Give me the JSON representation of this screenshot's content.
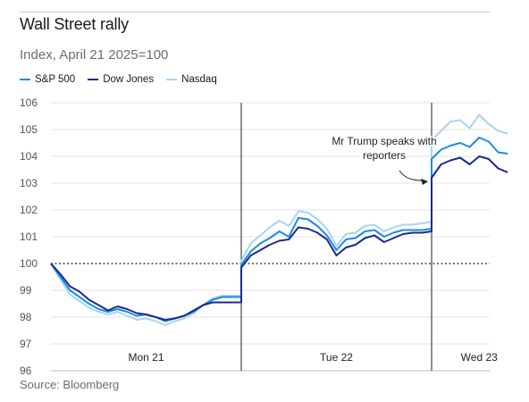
{
  "title": "Wall Street rally",
  "subtitle": "Index, April 21 2025=100",
  "source": "Source: Bloomberg",
  "legend": [
    {
      "name": "S&P 500",
      "color": "#1b8ce3"
    },
    {
      "name": "Dow Jones",
      "color": "#1c2a8c"
    },
    {
      "name": "Nasdaq",
      "color": "#a9d4f2"
    }
  ],
  "chart_data": {
    "type": "line",
    "ylim": [
      96,
      106
    ],
    "yticks": [
      96,
      97,
      98,
      99,
      100,
      101,
      102,
      103,
      104,
      105,
      106
    ],
    "baseline": 100,
    "xlim": [
      0,
      2.5
    ],
    "days": [
      {
        "label": "Mon 21",
        "start": 0,
        "end": 1
      },
      {
        "label": "Tue 22",
        "start": 1,
        "end": 2
      },
      {
        "label": "Wed 23",
        "start": 2,
        "end": 2.5
      }
    ],
    "annotation": {
      "lines": [
        "Mr Trump speaks with",
        "reporters"
      ],
      "x": 2.02,
      "y": 103.2
    },
    "series": [
      {
        "name": "S&P 500",
        "color": "#1b8ce3",
        "x": [
          0,
          0.05,
          0.1,
          0.15,
          0.2,
          0.25,
          0.3,
          0.35,
          0.4,
          0.45,
          0.5,
          0.55,
          0.6,
          0.65,
          0.7,
          0.75,
          0.8,
          0.85,
          0.9,
          0.95,
          1.0,
          1.0,
          1.05,
          1.1,
          1.15,
          1.2,
          1.25,
          1.3,
          1.35,
          1.4,
          1.45,
          1.5,
          1.55,
          1.6,
          1.65,
          1.7,
          1.75,
          1.8,
          1.85,
          1.9,
          1.95,
          2.0,
          2.0,
          2.05,
          2.1,
          2.15,
          2.2,
          2.25,
          2.3,
          2.35,
          2.4
        ],
        "values": [
          100.0,
          99.5,
          99.0,
          98.75,
          98.5,
          98.3,
          98.2,
          98.3,
          98.2,
          98.05,
          98.1,
          98.0,
          97.85,
          97.95,
          98.05,
          98.2,
          98.45,
          98.65,
          98.75,
          98.75,
          98.75,
          99.95,
          100.45,
          100.75,
          100.95,
          101.2,
          101.0,
          101.7,
          101.65,
          101.4,
          101.05,
          100.5,
          100.9,
          100.95,
          101.2,
          101.25,
          101.0,
          101.15,
          101.25,
          101.25,
          101.25,
          101.3,
          103.9,
          104.25,
          104.4,
          104.5,
          104.35,
          104.7,
          104.55,
          104.15,
          104.1
        ]
      },
      {
        "name": "Dow Jones",
        "color": "#1c2a8c",
        "x": [
          0,
          0.05,
          0.1,
          0.15,
          0.2,
          0.25,
          0.3,
          0.35,
          0.4,
          0.45,
          0.5,
          0.55,
          0.6,
          0.65,
          0.7,
          0.75,
          0.8,
          0.85,
          0.9,
          0.95,
          1.0,
          1.0,
          1.05,
          1.1,
          1.15,
          1.2,
          1.25,
          1.3,
          1.35,
          1.4,
          1.45,
          1.5,
          1.55,
          1.6,
          1.65,
          1.7,
          1.75,
          1.8,
          1.85,
          1.9,
          1.95,
          2.0,
          2.0,
          2.05,
          2.1,
          2.15,
          2.2,
          2.25,
          2.3,
          2.35,
          2.4
        ],
        "values": [
          100.0,
          99.6,
          99.15,
          98.95,
          98.65,
          98.45,
          98.25,
          98.4,
          98.3,
          98.15,
          98.1,
          98.0,
          97.9,
          97.95,
          98.05,
          98.25,
          98.45,
          98.55,
          98.55,
          98.55,
          98.55,
          99.85,
          100.3,
          100.5,
          100.7,
          100.85,
          100.9,
          101.35,
          101.3,
          101.15,
          100.9,
          100.3,
          100.6,
          100.7,
          100.95,
          101.05,
          100.8,
          100.95,
          101.1,
          101.15,
          101.15,
          101.2,
          103.2,
          103.7,
          103.85,
          103.95,
          103.7,
          104.0,
          103.9,
          103.55,
          103.4
        ]
      },
      {
        "name": "Nasdaq",
        "color": "#a9d4f2",
        "x": [
          0,
          0.05,
          0.1,
          0.15,
          0.2,
          0.25,
          0.3,
          0.35,
          0.4,
          0.45,
          0.5,
          0.55,
          0.6,
          0.65,
          0.7,
          0.75,
          0.8,
          0.85,
          0.9,
          0.95,
          1.0,
          1.0,
          1.05,
          1.1,
          1.15,
          1.2,
          1.25,
          1.3,
          1.35,
          1.4,
          1.45,
          1.5,
          1.55,
          1.6,
          1.65,
          1.7,
          1.75,
          1.8,
          1.85,
          1.9,
          1.95,
          2.0,
          2.0,
          2.05,
          2.1,
          2.15,
          2.2,
          2.25,
          2.3,
          2.35,
          2.4
        ],
        "values": [
          100.0,
          99.4,
          98.85,
          98.6,
          98.35,
          98.2,
          98.1,
          98.2,
          98.05,
          97.9,
          97.95,
          97.85,
          97.7,
          97.85,
          97.95,
          98.15,
          98.45,
          98.7,
          98.8,
          98.8,
          98.8,
          100.1,
          100.75,
          101.05,
          101.35,
          101.6,
          101.4,
          101.95,
          101.9,
          101.65,
          101.3,
          100.65,
          101.1,
          101.15,
          101.4,
          101.45,
          101.2,
          101.35,
          101.45,
          101.45,
          101.5,
          101.55,
          104.6,
          104.95,
          105.3,
          105.35,
          105.05,
          105.55,
          105.2,
          104.95,
          104.85
        ]
      }
    ]
  }
}
